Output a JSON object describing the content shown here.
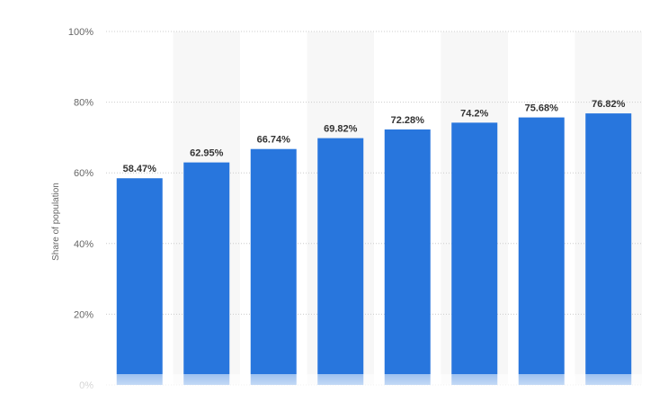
{
  "chart_data": {
    "type": "bar",
    "categories": [
      "",
      "",
      "",
      "",
      "",
      "",
      "",
      ""
    ],
    "values": [
      58.47,
      62.95,
      66.74,
      69.82,
      72.28,
      74.2,
      75.68,
      76.82
    ],
    "value_labels": [
      "58.47%",
      "62.95%",
      "66.74%",
      "69.82%",
      "72.28%",
      "74.2%",
      "75.68%",
      "76.82%"
    ],
    "title": "",
    "xlabel": "",
    "ylabel": "Share of population",
    "ylim": [
      0,
      100
    ],
    "yticks": [
      0,
      20,
      40,
      60,
      80,
      100
    ],
    "ytick_labels": [
      "0%",
      "20%",
      "40%",
      "60%",
      "80%",
      "100%"
    ],
    "grid": true,
    "legend": "none"
  },
  "colors": {
    "bar": "#2876dd",
    "band": "#f7f7f7",
    "grid": "#cccccc"
  }
}
